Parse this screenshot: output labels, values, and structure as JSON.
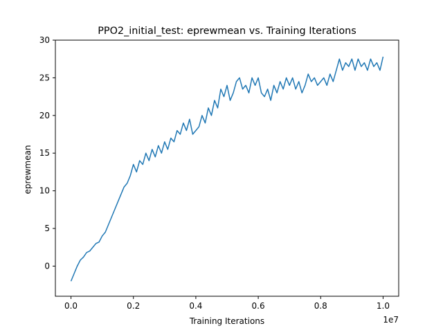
{
  "chart_data": {
    "type": "line",
    "title": "PPO2_initial_test: eprewmean vs. Training Iterations",
    "xlabel": "Training Iterations",
    "ylabel": "eprewmean",
    "x_offset_label": "1e7",
    "xlim": [
      -0.05,
      1.05
    ],
    "ylim": [
      -4,
      30
    ],
    "x_ticks": [
      0.0,
      0.2,
      0.4,
      0.6,
      0.8,
      1.0
    ],
    "x_tick_labels": [
      "0.0",
      "0.2",
      "0.4",
      "0.6",
      "0.8",
      "1.0"
    ],
    "y_ticks": [
      0,
      5,
      10,
      15,
      20,
      25,
      30
    ],
    "y_tick_labels": [
      "0",
      "5",
      "10",
      "15",
      "20",
      "25",
      "30"
    ],
    "grid": false,
    "legend": "none",
    "series": [
      {
        "color": "#1f77b4",
        "x": [
          0.0,
          0.01,
          0.02,
          0.03,
          0.04,
          0.05,
          0.06,
          0.07,
          0.08,
          0.09,
          0.1,
          0.11,
          0.12,
          0.13,
          0.14,
          0.15,
          0.16,
          0.17,
          0.18,
          0.19,
          0.2,
          0.21,
          0.22,
          0.23,
          0.24,
          0.25,
          0.26,
          0.27,
          0.28,
          0.29,
          0.3,
          0.31,
          0.32,
          0.33,
          0.34,
          0.35,
          0.36,
          0.37,
          0.38,
          0.39,
          0.4,
          0.41,
          0.42,
          0.43,
          0.44,
          0.45,
          0.46,
          0.47,
          0.48,
          0.49,
          0.5,
          0.51,
          0.52,
          0.53,
          0.54,
          0.55,
          0.56,
          0.57,
          0.58,
          0.59,
          0.6,
          0.61,
          0.62,
          0.63,
          0.64,
          0.65,
          0.66,
          0.67,
          0.68,
          0.69,
          0.7,
          0.71,
          0.72,
          0.73,
          0.74,
          0.75,
          0.76,
          0.77,
          0.78,
          0.79,
          0.8,
          0.81,
          0.82,
          0.83,
          0.84,
          0.85,
          0.86,
          0.87,
          0.88,
          0.89,
          0.9,
          0.91,
          0.92,
          0.93,
          0.94,
          0.95,
          0.96,
          0.97,
          0.98,
          0.99,
          1.0
        ],
        "y": [
          -2.0,
          -1.0,
          0.0,
          0.8,
          1.2,
          1.8,
          2.0,
          2.5,
          3.0,
          3.2,
          4.0,
          4.5,
          5.5,
          6.5,
          7.5,
          8.5,
          9.5,
          10.5,
          11.0,
          12.0,
          13.5,
          12.5,
          14.0,
          13.5,
          15.0,
          14.0,
          15.5,
          14.5,
          16.0,
          15.0,
          16.5,
          15.5,
          17.0,
          16.5,
          18.0,
          17.5,
          19.0,
          18.0,
          19.5,
          17.5,
          18.0,
          18.5,
          20.0,
          19.0,
          21.0,
          20.0,
          22.0,
          21.0,
          23.5,
          22.5,
          24.0,
          22.0,
          23.0,
          24.5,
          25.0,
          23.5,
          24.0,
          23.0,
          25.0,
          24.0,
          25.0,
          23.0,
          22.5,
          23.5,
          22.0,
          24.0,
          23.0,
          24.5,
          23.5,
          25.0,
          24.0,
          25.0,
          23.5,
          24.5,
          23.0,
          24.0,
          25.5,
          24.5,
          25.0,
          24.0,
          24.5,
          25.0,
          24.0,
          25.5,
          24.5,
          26.0,
          27.5,
          26.0,
          27.0,
          26.5,
          27.5,
          26.0,
          27.5,
          26.5,
          27.0,
          26.0,
          27.5,
          26.5,
          27.0,
          26.0,
          27.8
        ]
      }
    ]
  }
}
